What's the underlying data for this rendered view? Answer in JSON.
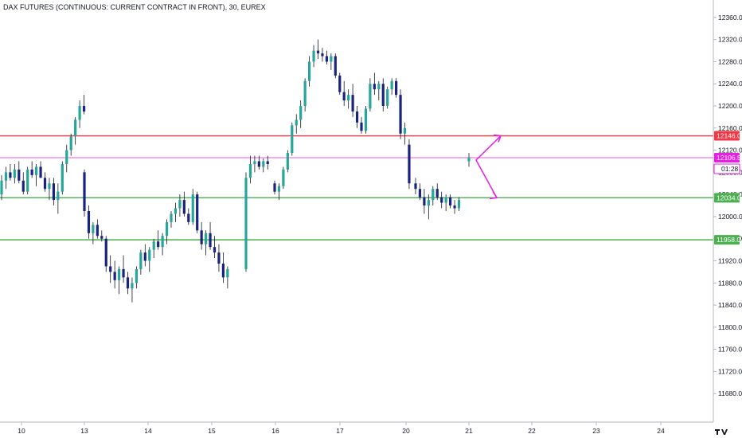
{
  "header": {
    "title": "DAX FUTURES (CONTINUOUS: CURRENT CONTRACT IN FRONT), 30, EUREX"
  },
  "chart_data": {
    "type": "candlestick",
    "title": "DAX FUTURES (CONTINUOUS: CURRENT CONTRACT IN FRONT), 30, EUREX",
    "ylim": [
      11640,
      12380
    ],
    "y_ticks": [
      12360,
      12320,
      12280,
      12240,
      12200,
      12160,
      12120,
      12080,
      12040,
      12000,
      11960,
      11920,
      11880,
      11840,
      11800,
      11760,
      11720,
      11680
    ],
    "y_tick_labels": [
      "12360.0",
      "12320.0",
      "12280.0",
      "12240.0",
      "12200.0",
      "12160.0",
      "12120.0",
      "12080.0",
      "12040.0",
      "12000.0",
      "11960.0",
      "11920.0",
      "11880.0",
      "11840.0",
      "11800.0",
      "11760.0",
      "11720.0",
      "11680.0"
    ],
    "x_ticks": [
      "10",
      "13",
      "14",
      "15",
      "16",
      "17",
      "20",
      "21",
      "22",
      "23",
      "24"
    ],
    "grid": false,
    "colors": {
      "up_candle": "#26a69a",
      "down_candle": "#1a237e",
      "resistance": "#f23645",
      "support": "#4caf50",
      "last_price": "#e91ee6",
      "arrow": "#e91ee6"
    },
    "series": [
      {
        "values": [
          [
            12040,
            12075,
            12030,
            12065
          ],
          [
            12065,
            12090,
            12050,
            12080
          ],
          [
            12080,
            12095,
            12065,
            12070
          ],
          [
            12070,
            12095,
            12060,
            12085
          ],
          [
            12085,
            12100,
            12060,
            12065
          ],
          [
            12065,
            12080,
            12040,
            12045
          ],
          [
            12045,
            12090,
            12040,
            12085
          ],
          [
            12085,
            12100,
            12070,
            12075
          ],
          [
            12075,
            12095,
            12055,
            12090
          ],
          [
            12090,
            12100,
            12070,
            12070
          ],
          [
            12070,
            12080,
            12045,
            12050
          ],
          [
            12050,
            12070,
            12030,
            12060
          ],
          [
            12060,
            12070,
            12020,
            12030
          ],
          [
            12030,
            12060,
            12005,
            12045
          ],
          [
            12045,
            12100,
            12040,
            12095
          ],
          [
            12095,
            12130,
            12080,
            12120
          ],
          [
            12120,
            12150,
            12110,
            12145
          ],
          [
            12145,
            12180,
            12130,
            12175
          ],
          [
            12175,
            12210,
            12160,
            12200
          ],
          [
            12200,
            12220,
            12185,
            12190
          ],
          [
            12080,
            12085,
            12000,
            12010
          ],
          [
            12010,
            12020,
            11960,
            11970
          ],
          [
            11970,
            11990,
            11950,
            11985
          ],
          [
            11985,
            11995,
            11960,
            11965
          ],
          [
            11965,
            11975,
            11955,
            11960
          ],
          [
            11960,
            11965,
            11900,
            11910
          ],
          [
            11910,
            11930,
            11880,
            11900
          ],
          [
            11900,
            11920,
            11870,
            11885
          ],
          [
            11885,
            11910,
            11860,
            11905
          ],
          [
            11905,
            11930,
            11880,
            11890
          ],
          [
            11890,
            11900,
            11860,
            11870
          ],
          [
            11870,
            11890,
            11845,
            11880
          ],
          [
            11880,
            11910,
            11870,
            11905
          ],
          [
            11905,
            11940,
            11895,
            11935
          ],
          [
            11935,
            11950,
            11910,
            11920
          ],
          [
            11920,
            11945,
            11900,
            11940
          ],
          [
            11940,
            11960,
            11925,
            11955
          ],
          [
            11955,
            11975,
            11940,
            11945
          ],
          [
            11945,
            11970,
            11930,
            11965
          ],
          [
            11965,
            11995,
            11950,
            11990
          ],
          [
            11990,
            12010,
            11980,
            12005
          ],
          [
            12005,
            12025,
            11990,
            12015
          ],
          [
            12015,
            12040,
            12000,
            12030
          ],
          [
            12030,
            12045,
            12000,
            12005
          ],
          [
            12005,
            12015,
            11985,
            11990
          ],
          [
            11990,
            12050,
            11985,
            12040
          ],
          [
            12040,
            12045,
            11970,
            11975
          ],
          [
            11975,
            11990,
            11940,
            11950
          ],
          [
            11950,
            11975,
            11930,
            11970
          ],
          [
            11970,
            11990,
            11940,
            11945
          ],
          [
            11945,
            11965,
            11925,
            11935
          ],
          [
            11935,
            11950,
            11900,
            11915
          ],
          [
            11915,
            11935,
            11880,
            11890
          ],
          [
            11890,
            11910,
            11870,
            11905
          ],
          [
            11905,
            12080,
            11900,
            12070
          ],
          [
            12070,
            12110,
            12060,
            12095
          ],
          [
            12095,
            12110,
            12080,
            12100
          ],
          [
            12100,
            12110,
            12085,
            12090
          ],
          [
            12090,
            12105,
            12080,
            12100
          ],
          [
            12100,
            12110,
            12085,
            12095
          ],
          [
            12060,
            12065,
            12040,
            12045
          ],
          [
            12045,
            12060,
            12030,
            12055
          ],
          [
            12055,
            12090,
            12050,
            12085
          ],
          [
            12085,
            12120,
            12080,
            12115
          ],
          [
            12115,
            12170,
            12110,
            12165
          ],
          [
            12165,
            12185,
            12150,
            12175
          ],
          [
            12175,
            12210,
            12160,
            12200
          ],
          [
            12200,
            12250,
            12190,
            12245
          ],
          [
            12245,
            12290,
            12235,
            12280
          ],
          [
            12280,
            12310,
            12270,
            12300
          ],
          [
            12300,
            12320,
            12285,
            12295
          ],
          [
            12295,
            12305,
            12280,
            12290
          ],
          [
            12290,
            12300,
            12275,
            12280
          ],
          [
            12280,
            12295,
            12265,
            12290
          ],
          [
            12290,
            12295,
            12250,
            12255
          ],
          [
            12255,
            12260,
            12220,
            12225
          ],
          [
            12225,
            12245,
            12200,
            12210
          ],
          [
            12210,
            12230,
            12195,
            12220
          ],
          [
            12220,
            12240,
            12180,
            12190
          ],
          [
            12190,
            12200,
            12160,
            12170
          ],
          [
            12170,
            12180,
            12150,
            12155
          ],
          [
            12155,
            12200,
            12150,
            12195
          ],
          [
            12195,
            12250,
            12190,
            12240
          ],
          [
            12240,
            12260,
            12220,
            12230
          ],
          [
            12230,
            12245,
            12210,
            12240
          ],
          [
            12240,
            12250,
            12190,
            12200
          ],
          [
            12200,
            12235,
            12195,
            12230
          ],
          [
            12230,
            12250,
            12220,
            12245
          ],
          [
            12245,
            12250,
            12215,
            12220
          ],
          [
            12220,
            12230,
            12140,
            12150
          ],
          [
            12150,
            12170,
            12130,
            12160
          ],
          [
            12130,
            12140,
            12050,
            12060
          ],
          [
            12060,
            12070,
            12040,
            12050
          ],
          [
            12050,
            12060,
            12030,
            12035
          ],
          [
            12035,
            12050,
            12005,
            12020
          ],
          [
            12020,
            12040,
            11995,
            12030
          ],
          [
            12030,
            12055,
            12020,
            12050
          ],
          [
            12050,
            12060,
            12030,
            12035
          ],
          [
            12035,
            12045,
            12015,
            12025
          ],
          [
            12025,
            12040,
            12010,
            12035
          ],
          [
            12035,
            12040,
            12015,
            12020
          ],
          [
            12020,
            12030,
            12005,
            12015
          ],
          [
            12015,
            12035,
            12010,
            12030
          ],
          [
            12100,
            12115,
            12090,
            12107
          ]
        ]
      }
    ],
    "horizontal_lines": [
      {
        "value": 12146.0,
        "label": "12146.0",
        "color": "#f23645"
      },
      {
        "value": 12034.0,
        "label": "12034.0",
        "color": "#4caf50"
      },
      {
        "value": 11958.0,
        "label": "11958.0",
        "color": "#4caf50"
      },
      {
        "value": 12106.5,
        "label": "12106.5",
        "color": "#e91ee6"
      }
    ],
    "last_price": "12106.5",
    "countdown": "01:28"
  }
}
